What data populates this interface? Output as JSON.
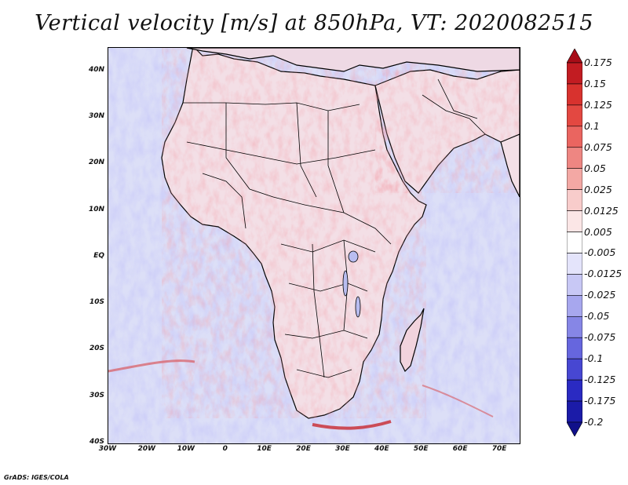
{
  "title": "Vertical velocity [m/s] at 850hPa, VT: 2020082515",
  "credit": "GrADS: IGES/COLA",
  "map": {
    "lon_range": [
      -30,
      75
    ],
    "lat_range": [
      -40,
      45
    ],
    "lat_ticks": [
      {
        "value": 40,
        "label": "40N"
      },
      {
        "value": 30,
        "label": "30N"
      },
      {
        "value": 20,
        "label": "20N"
      },
      {
        "value": 10,
        "label": "10N"
      },
      {
        "value": 0,
        "label": "EQ"
      },
      {
        "value": -10,
        "label": "10S"
      },
      {
        "value": -20,
        "label": "20S"
      },
      {
        "value": -30,
        "label": "30S"
      },
      {
        "value": -40,
        "label": "40S"
      }
    ],
    "lon_ticks": [
      {
        "value": -30,
        "label": "30W"
      },
      {
        "value": -20,
        "label": "20W"
      },
      {
        "value": -10,
        "label": "10W"
      },
      {
        "value": 0,
        "label": "0"
      },
      {
        "value": 10,
        "label": "10E"
      },
      {
        "value": 20,
        "label": "20E"
      },
      {
        "value": 30,
        "label": "30E"
      },
      {
        "value": 40,
        "label": "40E"
      },
      {
        "value": 50,
        "label": "50E"
      },
      {
        "value": 60,
        "label": "60E"
      },
      {
        "value": 70,
        "label": "70E"
      }
    ],
    "background_color": "#d9dcf6",
    "land_color": "#f2e4ec",
    "border_color": "#000000"
  },
  "colorbar": {
    "labels": [
      "0.175",
      "0.15",
      "0.125",
      "0.1",
      "0.075",
      "0.05",
      "0.025",
      "0.0125",
      "0.005",
      "-0.005",
      "-0.0125",
      "-0.025",
      "-0.05",
      "-0.075",
      "-0.1",
      "-0.125",
      "-0.175",
      "-0.2"
    ],
    "colors": [
      "#a80d18",
      "#c21c22",
      "#d8322e",
      "#e34841",
      "#ea6560",
      "#ee8682",
      "#f3a8a4",
      "#f8cccb",
      "#fbe6e6",
      "#ffffff",
      "#e4e4fb",
      "#c8c8f5",
      "#a7a7ee",
      "#8686e6",
      "#6666de",
      "#4747d2",
      "#2a2ac2",
      "#1b1ba8",
      "#10108a"
    ]
  }
}
